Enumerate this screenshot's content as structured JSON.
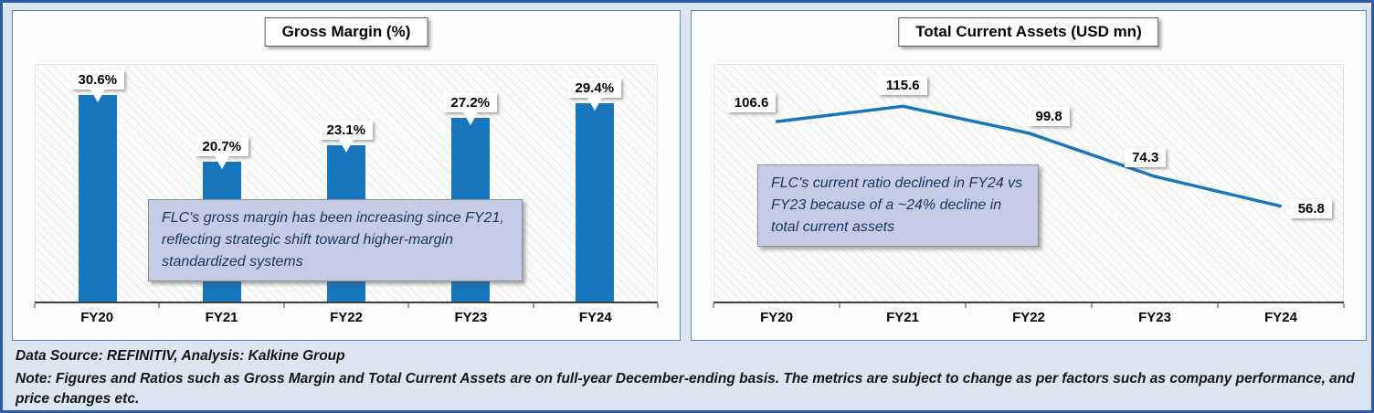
{
  "colors": {
    "frame_border": "#2B5CA8",
    "panel_border": "#5B87C5",
    "series_blue": "#1776BE",
    "annotation_bg": "#C6CCE6",
    "annotation_text": "#17365D",
    "page_bg": "#DCE6F2"
  },
  "footer": {
    "source_note": "Data Source: REFINITIV, Analysis: Kalkine Group",
    "note": "Note: Figures and Ratios such as Gross Margin and Total Current Assets are on full-year December-ending basis. The metrics are subject to change as per factors such as company performance, and price changes etc."
  },
  "chart_data": [
    {
      "type": "bar",
      "title": "Gross Margin (%)",
      "categories": [
        "FY20",
        "FY21",
        "FY22",
        "FY23",
        "FY24"
      ],
      "values": [
        30.6,
        20.7,
        23.1,
        27.2,
        29.4
      ],
      "labels": [
        "30.6%",
        "20.7%",
        "23.1%",
        "27.2%",
        "29.4%"
      ],
      "unit": "%",
      "ylim": [
        0,
        35
      ],
      "grid": false,
      "legend": false,
      "annotation": "FLC's gross margin has been increasing since FY21, reflecting strategic shift toward higher-margin standardized systems"
    },
    {
      "type": "line",
      "title": "Total Current Assets (USD mn)",
      "categories": [
        "FY20",
        "FY21",
        "FY22",
        "FY23",
        "FY24"
      ],
      "values": [
        106.6,
        115.6,
        99.8,
        74.3,
        56.8
      ],
      "labels": [
        "106.6",
        "115.6",
        "99.8",
        "74.3",
        "56.8"
      ],
      "unit": "USD mn",
      "ylim": [
        0,
        140
      ],
      "grid": false,
      "legend": false,
      "annotation": "FLC's current ratio declined in FY24 vs FY23 because of a ~24% decline in total current assets"
    }
  ]
}
